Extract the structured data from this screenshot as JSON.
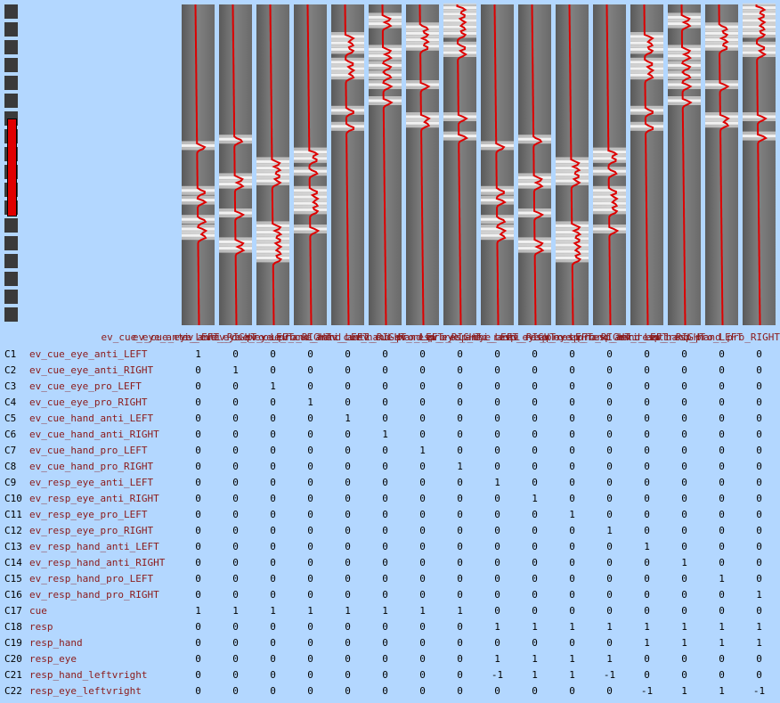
{
  "colorbar": {
    "segments": 18,
    "marker_color": "#e00000"
  },
  "design": {
    "colors": {
      "background": "#808080",
      "regressor": "#dd0000"
    },
    "columns": [
      {
        "label": "ev_cue_eye_anti_LEFT",
        "events": [
          0.44,
          0.58,
          0.61,
          0.67,
          0.7,
          0.72
        ]
      },
      {
        "label": "ev_cue_eye_anti_RIGHT",
        "events": [
          0.42,
          0.54,
          0.56,
          0.65,
          0.74,
          0.76
        ]
      },
      {
        "label": "ev_cue_eye_pro_LEFT",
        "events": [
          0.49,
          0.51,
          0.53,
          0.55,
          0.69,
          0.71,
          0.73,
          0.75,
          0.77,
          0.79
        ]
      },
      {
        "label": "ev_cue_eye_pro_RIGHT",
        "events": [
          0.46,
          0.48,
          0.52,
          0.58,
          0.6,
          0.62,
          0.64,
          0.7
        ]
      },
      {
        "label": "ev_cue_hand_anti_LEFT",
        "events": [
          0.1,
          0.12,
          0.14,
          0.18,
          0.2,
          0.22,
          0.33,
          0.38
        ]
      },
      {
        "label": "ev_cue_hand_anti_RIGHT",
        "events": [
          0.04,
          0.06,
          0.14,
          0.16,
          0.19,
          0.22,
          0.25,
          0.3
        ]
      },
      {
        "label": "ev_cue_hand_pro_LEFT",
        "events": [
          0.07,
          0.09,
          0.11,
          0.13,
          0.25,
          0.35,
          0.37
        ]
      },
      {
        "label": "ev_cue_hand_pro_RIGHT",
        "events": [
          0.01,
          0.03,
          0.05,
          0.07,
          0.09,
          0.13,
          0.15,
          0.35,
          0.41
        ]
      },
      {
        "label": "ev_resp_eye_anti_LEFT",
        "events": [
          0.44,
          0.58,
          0.61,
          0.67,
          0.7,
          0.72
        ]
      },
      {
        "label": "ev_resp_eye_anti_RIGHT",
        "events": [
          0.42,
          0.54,
          0.56,
          0.65,
          0.74,
          0.76
        ]
      },
      {
        "label": "ev_resp_eye_pro_LEFT",
        "events": [
          0.49,
          0.51,
          0.53,
          0.55,
          0.69,
          0.71,
          0.73,
          0.75,
          0.77,
          0.79
        ]
      },
      {
        "label": "ev_resp_eye_pro_RIGHT",
        "events": [
          0.46,
          0.48,
          0.52,
          0.58,
          0.6,
          0.62,
          0.64,
          0.7
        ]
      },
      {
        "label": "ev_resp_hand_anti_LEFT",
        "events": [
          0.1,
          0.12,
          0.14,
          0.18,
          0.2,
          0.22,
          0.33,
          0.38
        ]
      },
      {
        "label": "ev_resp_hand_anti_RIGHT",
        "events": [
          0.04,
          0.06,
          0.14,
          0.16,
          0.19,
          0.22,
          0.25,
          0.3
        ]
      },
      {
        "label": "ev_resp_hand_pro_LEFT",
        "events": [
          0.07,
          0.09,
          0.11,
          0.13,
          0.25,
          0.35,
          0.37
        ]
      },
      {
        "label": "ev_resp_hand_pro_RIGHT",
        "events": [
          0.01,
          0.03,
          0.05,
          0.07,
          0.09,
          0.13,
          0.15,
          0.35,
          0.41
        ]
      }
    ]
  },
  "contrasts": [
    {
      "id": "C1",
      "name": "ev_cue_eye_anti_LEFT",
      "values": [
        "1",
        "0",
        "0",
        "0",
        "0",
        "0",
        "0",
        "0",
        "0",
        "0",
        "0",
        "0",
        "0",
        "0",
        "0",
        "0"
      ]
    },
    {
      "id": "C2",
      "name": "ev_cue_eye_anti_RIGHT",
      "values": [
        "0",
        "1",
        "0",
        "0",
        "0",
        "0",
        "0",
        "0",
        "0",
        "0",
        "0",
        "0",
        "0",
        "0",
        "0",
        "0"
      ]
    },
    {
      "id": "C3",
      "name": "ev_cue_eye_pro_LEFT",
      "values": [
        "0",
        "0",
        "1",
        "0",
        "0",
        "0",
        "0",
        "0",
        "0",
        "0",
        "0",
        "0",
        "0",
        "0",
        "0",
        "0"
      ]
    },
    {
      "id": "C4",
      "name": "ev_cue_eye_pro_RIGHT",
      "values": [
        "0",
        "0",
        "0",
        "1",
        "0",
        "0",
        "0",
        "0",
        "0",
        "0",
        "0",
        "0",
        "0",
        "0",
        "0",
        "0"
      ]
    },
    {
      "id": "C5",
      "name": "ev_cue_hand_anti_LEFT",
      "values": [
        "0",
        "0",
        "0",
        "0",
        "1",
        "0",
        "0",
        "0",
        "0",
        "0",
        "0",
        "0",
        "0",
        "0",
        "0",
        "0"
      ]
    },
    {
      "id": "C6",
      "name": "ev_cue_hand_anti_RIGHT",
      "values": [
        "0",
        "0",
        "0",
        "0",
        "0",
        "1",
        "0",
        "0",
        "0",
        "0",
        "0",
        "0",
        "0",
        "0",
        "0",
        "0"
      ]
    },
    {
      "id": "C7",
      "name": "ev_cue_hand_pro_LEFT",
      "values": [
        "0",
        "0",
        "0",
        "0",
        "0",
        "0",
        "1",
        "0",
        "0",
        "0",
        "0",
        "0",
        "0",
        "0",
        "0",
        "0"
      ]
    },
    {
      "id": "C8",
      "name": "ev_cue_hand_pro_RIGHT",
      "values": [
        "0",
        "0",
        "0",
        "0",
        "0",
        "0",
        "0",
        "1",
        "0",
        "0",
        "0",
        "0",
        "0",
        "0",
        "0",
        "0"
      ]
    },
    {
      "id": "C9",
      "name": "ev_resp_eye_anti_LEFT",
      "values": [
        "0",
        "0",
        "0",
        "0",
        "0",
        "0",
        "0",
        "0",
        "1",
        "0",
        "0",
        "0",
        "0",
        "0",
        "0",
        "0"
      ]
    },
    {
      "id": "C10",
      "name": "ev_resp_eye_anti_RIGHT",
      "values": [
        "0",
        "0",
        "0",
        "0",
        "0",
        "0",
        "0",
        "0",
        "0",
        "1",
        "0",
        "0",
        "0",
        "0",
        "0",
        "0"
      ]
    },
    {
      "id": "C11",
      "name": "ev_resp_eye_pro_LEFT",
      "values": [
        "0",
        "0",
        "0",
        "0",
        "0",
        "0",
        "0",
        "0",
        "0",
        "0",
        "1",
        "0",
        "0",
        "0",
        "0",
        "0"
      ]
    },
    {
      "id": "C12",
      "name": "ev_resp_eye_pro_RIGHT",
      "values": [
        "0",
        "0",
        "0",
        "0",
        "0",
        "0",
        "0",
        "0",
        "0",
        "0",
        "0",
        "1",
        "0",
        "0",
        "0",
        "0"
      ]
    },
    {
      "id": "C13",
      "name": "ev_resp_hand_anti_LEFT",
      "values": [
        "0",
        "0",
        "0",
        "0",
        "0",
        "0",
        "0",
        "0",
        "0",
        "0",
        "0",
        "0",
        "1",
        "0",
        "0",
        "0"
      ]
    },
    {
      "id": "C14",
      "name": "ev_resp_hand_anti_RIGHT",
      "values": [
        "0",
        "0",
        "0",
        "0",
        "0",
        "0",
        "0",
        "0",
        "0",
        "0",
        "0",
        "0",
        "0",
        "1",
        "0",
        "0"
      ]
    },
    {
      "id": "C15",
      "name": "ev_resp_hand_pro_LEFT",
      "values": [
        "0",
        "0",
        "0",
        "0",
        "0",
        "0",
        "0",
        "0",
        "0",
        "0",
        "0",
        "0",
        "0",
        "0",
        "1",
        "0"
      ]
    },
    {
      "id": "C16",
      "name": "ev_resp_hand_pro_RIGHT",
      "values": [
        "0",
        "0",
        "0",
        "0",
        "0",
        "0",
        "0",
        "0",
        "0",
        "0",
        "0",
        "0",
        "0",
        "0",
        "0",
        "1"
      ]
    },
    {
      "id": "C17",
      "name": "cue",
      "values": [
        "1",
        "1",
        "1",
        "1",
        "1",
        "1",
        "1",
        "1",
        "0",
        "0",
        "0",
        "0",
        "0",
        "0",
        "0",
        "0"
      ]
    },
    {
      "id": "C18",
      "name": "resp",
      "values": [
        "0",
        "0",
        "0",
        "0",
        "0",
        "0",
        "0",
        "0",
        "1",
        "1",
        "1",
        "1",
        "1",
        "1",
        "1",
        "1"
      ]
    },
    {
      "id": "C19",
      "name": "resp_hand",
      "values": [
        "0",
        "0",
        "0",
        "0",
        "0",
        "0",
        "0",
        "0",
        "0",
        "0",
        "0",
        "0",
        "1",
        "1",
        "1",
        "1"
      ]
    },
    {
      "id": "C20",
      "name": "resp_eye",
      "values": [
        "0",
        "0",
        "0",
        "0",
        "0",
        "0",
        "0",
        "0",
        "1",
        "1",
        "1",
        "1",
        "0",
        "0",
        "0",
        "0"
      ]
    },
    {
      "id": "C21",
      "name": "resp_hand_leftvright",
      "values": [
        "0",
        "0",
        "0",
        "0",
        "0",
        "0",
        "0",
        "0",
        "-1",
        "1",
        "1",
        "-1",
        "0",
        "0",
        "0",
        "0"
      ]
    },
    {
      "id": "C22",
      "name": "resp_eye_leftvright",
      "values": [
        "0",
        "0",
        "0",
        "0",
        "0",
        "0",
        "0",
        "0",
        "0",
        "0",
        "0",
        "0",
        "-1",
        "1",
        "1",
        "-1"
      ]
    }
  ]
}
